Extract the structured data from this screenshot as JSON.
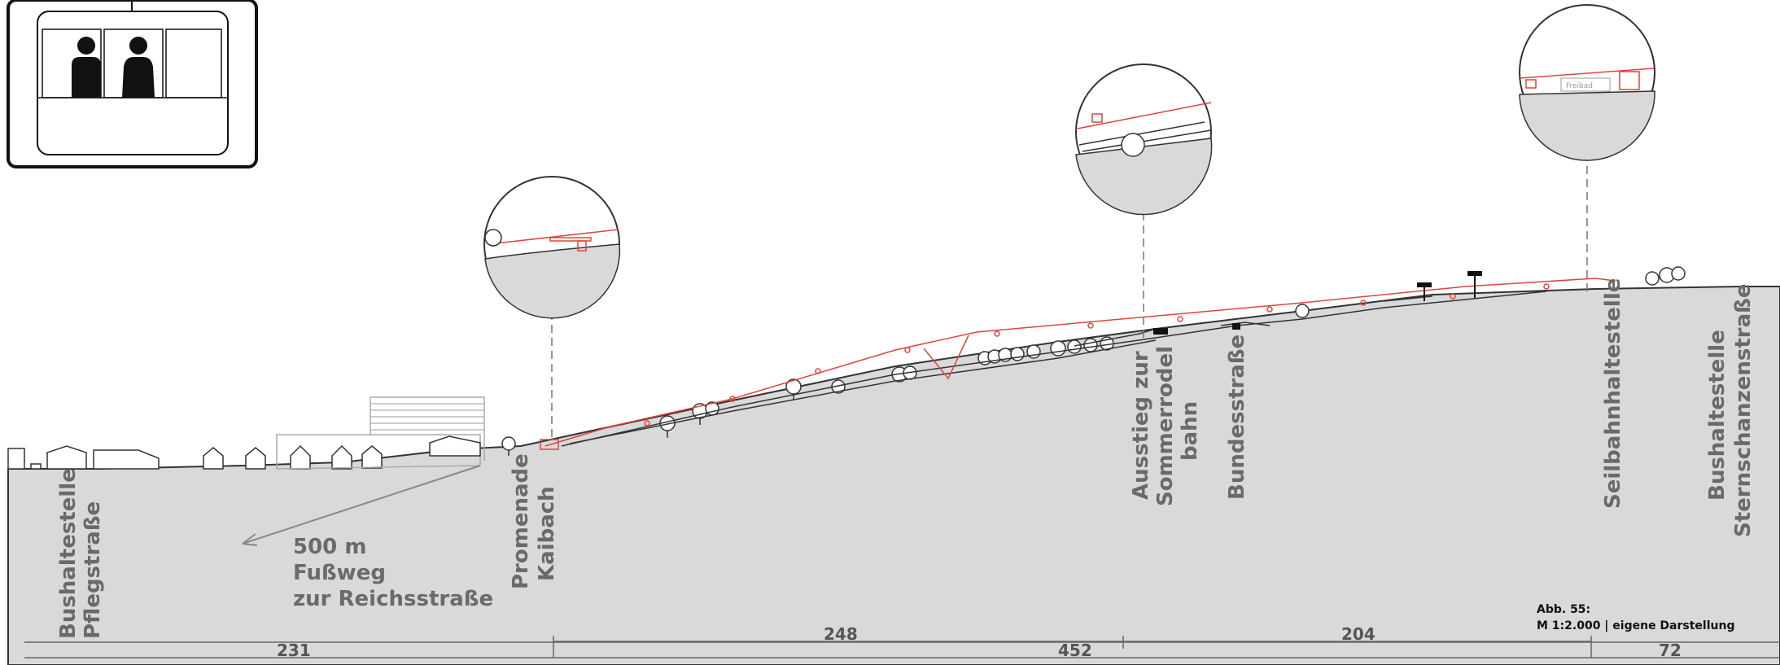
{
  "labels": {
    "bus_pflegstrasse": [
      "Bushaltestelle",
      "Pflegstraße"
    ],
    "walkway": [
      "500 m",
      "Fußweg",
      "zur Reichsstraße"
    ],
    "promenade": [
      "Promenade",
      "Kaibach"
    ],
    "exit_summer_toboggan": [
      "Ausstieg zur",
      "Sommerrodel",
      "bahn"
    ],
    "bundesstrasse": "Bundesstraße",
    "cable_car_stop": "Seilbahnhaltestelle",
    "bus_sternschanzenstrasse": [
      "Bushaltestelle",
      "Sternschanzenstraße"
    ]
  },
  "caption": {
    "figure": "Abb. 55:",
    "scale": "M 1:2.000 | eigene Darstellung"
  },
  "dimensions": {
    "segment_231": "231",
    "segment_248": "248",
    "segment_204": "204",
    "segment_452": "452",
    "segment_72": "72"
  },
  "detail_texts": {
    "station_sign": "Freibad"
  },
  "colors": {
    "ground": "#d9d9d9",
    "line": "#444444",
    "cable": "#e0443c",
    "label_gray": "#6a6a6a"
  }
}
